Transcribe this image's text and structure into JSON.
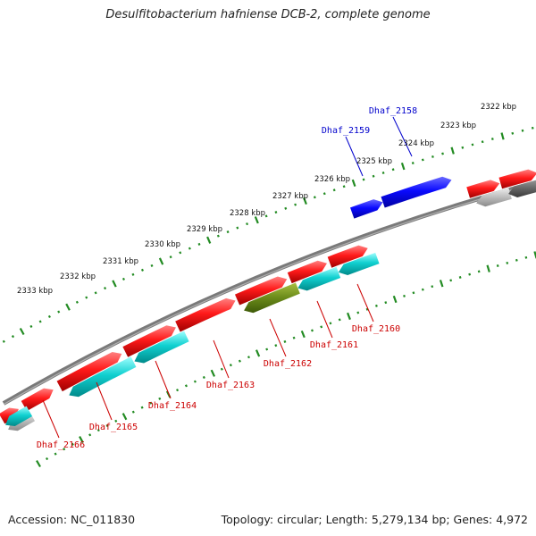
{
  "title": "Desulfitobacterium hafniense DCB-2, complete genome",
  "footer": {
    "accession": "Accession: NC_011830",
    "summary": "Topology: circular; Length: 5,279,134 bp; Genes: 4,972"
  },
  "colors": {
    "backbone": "#7a7a7a",
    "forward_cds": "#e8101a",
    "reverse_cds": "#10c4c8",
    "reverse_cds_highlight": "#6a8a1a",
    "label_blue": "#0000cc",
    "label_red": "#cc0000",
    "tick": "#228b22"
  },
  "scale_labels": [
    "2322 kbp",
    "2323 kbp",
    "2324 kbp",
    "2325 kbp",
    "2326 kbp",
    "2327 kbp",
    "2328 kbp",
    "2329 kbp",
    "2330 kbp",
    "2331 kbp",
    "2332 kbp",
    "2333 kbp"
  ],
  "gene_labels": [
    {
      "id": "Dhaf_2158",
      "strand": "forward"
    },
    {
      "id": "Dhaf_2159",
      "strand": "forward"
    },
    {
      "id": "Dhaf_2160",
      "strand": "reverse"
    },
    {
      "id": "Dhaf_2161",
      "strand": "reverse"
    },
    {
      "id": "Dhaf_2162",
      "strand": "reverse"
    },
    {
      "id": "Dhaf_2163",
      "strand": "reverse"
    },
    {
      "id": "Dhaf_2164",
      "strand": "reverse"
    },
    {
      "id": "Dhaf_2165",
      "strand": "reverse"
    },
    {
      "id": "Dhaf_2166",
      "strand": "reverse"
    }
  ]
}
